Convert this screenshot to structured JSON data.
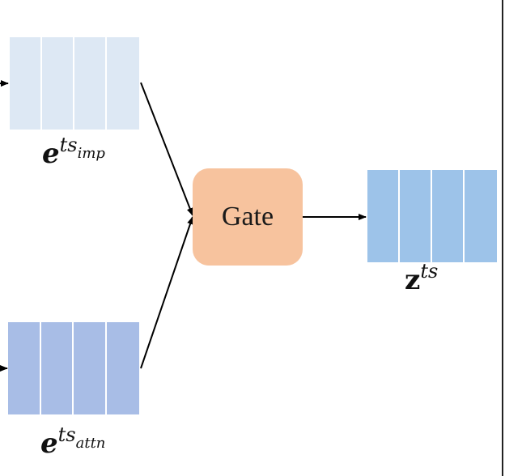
{
  "gate": {
    "label": "Gate"
  },
  "labels": {
    "imp": {
      "base": "e",
      "sup": "ts",
      "sub": "imp"
    },
    "attn": {
      "base": "e",
      "sup": "ts",
      "sub": "attn"
    },
    "z": {
      "base": "z",
      "sup": "ts"
    }
  },
  "colors": {
    "imp_vector": "#dde8f4",
    "attn_vector": "#a8bde6",
    "z_vector": "#9dc3e9",
    "gate_fill": "#f7c39e"
  }
}
